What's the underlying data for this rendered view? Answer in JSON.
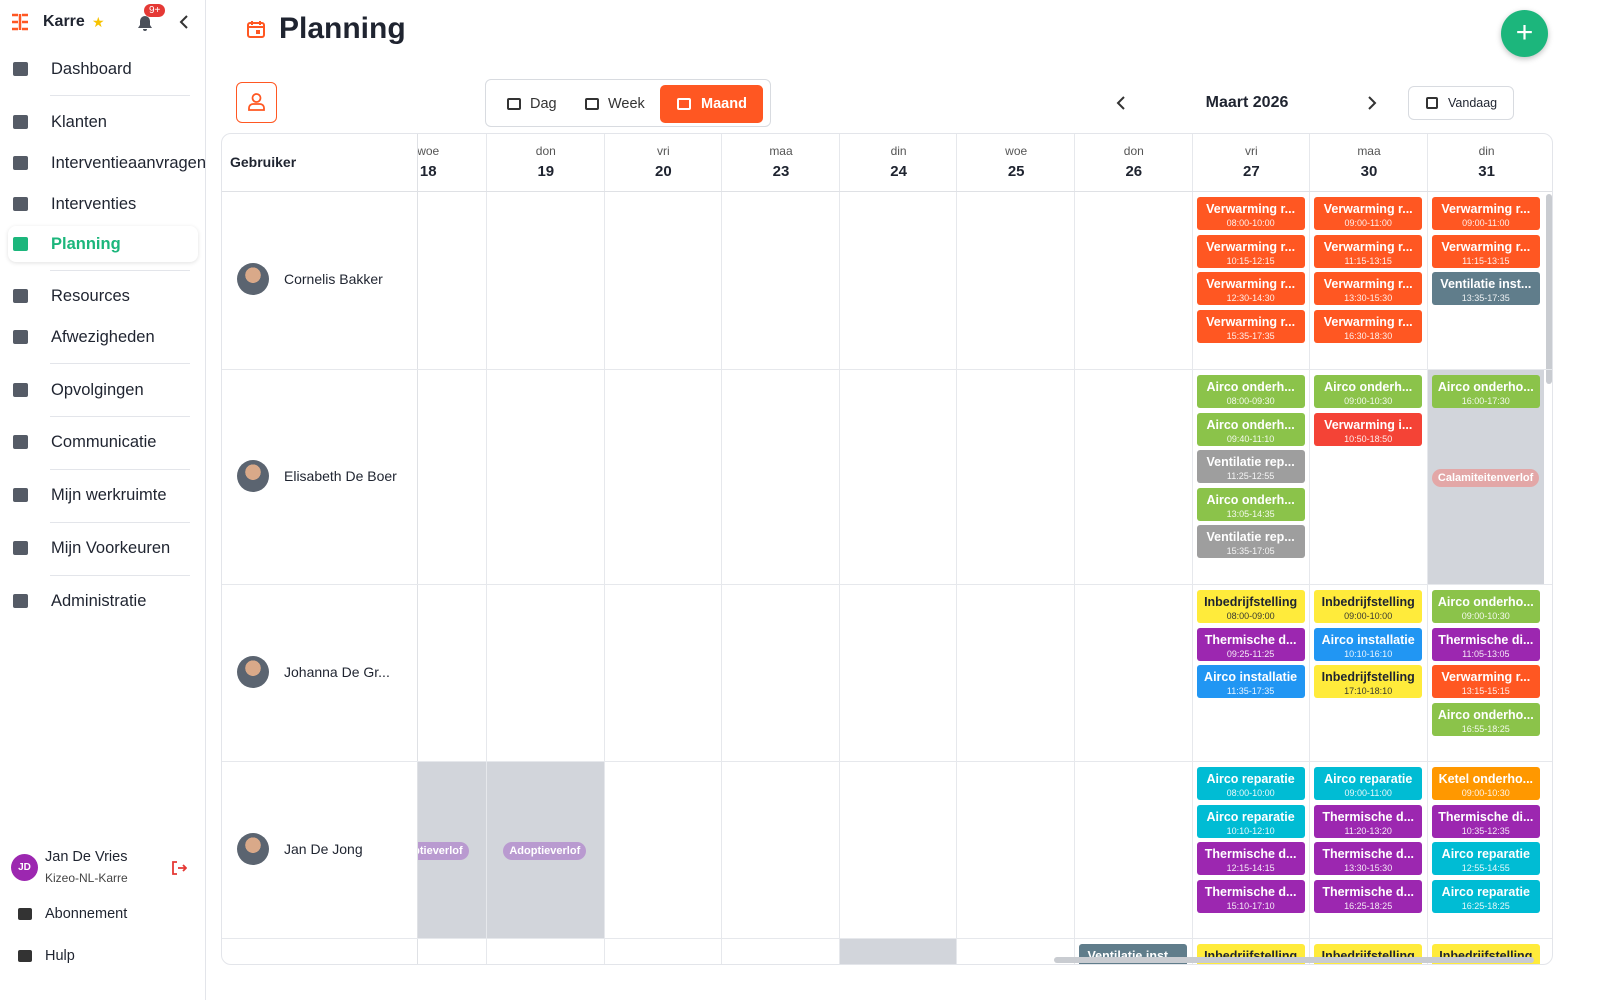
{
  "sidebar": {
    "brand": "Karre",
    "badge": "9+",
    "nav": [
      {
        "label": "Dashboard"
      },
      {
        "label": "Klanten"
      },
      {
        "label": "Interventieaanvragen"
      },
      {
        "label": "Interventies"
      },
      {
        "label": "Planning",
        "active": true
      },
      {
        "label": "Resources"
      },
      {
        "label": "Afwezigheden"
      },
      {
        "label": "Opvolgingen"
      },
      {
        "label": "Communicatie"
      },
      {
        "label": "Mijn werkruimte"
      },
      {
        "label": "Mijn Voorkeuren"
      },
      {
        "label": "Administratie"
      }
    ],
    "user": {
      "initials": "JD",
      "name": "Jan De Vries",
      "org": "Kizeo-NL-Karre"
    },
    "footer": [
      "Abonnement",
      "Hulp"
    ]
  },
  "header": {
    "title": "Planning"
  },
  "toolbar": {
    "views": [
      {
        "label": "Dag"
      },
      {
        "label": "Week"
      },
      {
        "label": "Maand",
        "active": true
      }
    ],
    "period": "Maart 2026",
    "today": "Vandaag"
  },
  "grid": {
    "user_header": "Gebruiker",
    "days": [
      {
        "dow": "woe",
        "num": 18
      },
      {
        "dow": "don",
        "num": 19
      },
      {
        "dow": "vri",
        "num": 20
      },
      {
        "dow": "maa",
        "num": 23
      },
      {
        "dow": "din",
        "num": 24
      },
      {
        "dow": "woe",
        "num": 25
      },
      {
        "dow": "don",
        "num": 26
      },
      {
        "dow": "vri",
        "num": 27
      },
      {
        "dow": "maa",
        "num": 30
      },
      {
        "dow": "din",
        "num": 31
      }
    ],
    "users": [
      {
        "name": "Cornelis Bakker",
        "cells": [
          null,
          null,
          null,
          null,
          null,
          null,
          null,
          {
            "events": [
              {
                "title": "Verwarming r...",
                "time": "08:00-10:00",
                "color": "#ff5722"
              },
              {
                "title": "Verwarming r...",
                "time": "10:15-12:15",
                "color": "#ff5722"
              },
              {
                "title": "Verwarming r...",
                "time": "12:30-14:30",
                "color": "#ff5722"
              },
              {
                "title": "Verwarming r...",
                "time": "15:35-17:35",
                "color": "#ff5722"
              }
            ]
          },
          {
            "events": [
              {
                "title": "Verwarming r...",
                "time": "09:00-11:00",
                "color": "#ff5722"
              },
              {
                "title": "Verwarming r...",
                "time": "11:15-13:15",
                "color": "#ff5722"
              },
              {
                "title": "Verwarming r...",
                "time": "13:30-15:30",
                "color": "#ff5722"
              },
              {
                "title": "Verwarming r...",
                "time": "16:30-18:30",
                "color": "#ff5722"
              }
            ]
          },
          {
            "events": [
              {
                "title": "Verwarming r...",
                "time": "09:00-11:00",
                "color": "#ff5722"
              },
              {
                "title": "Verwarming r...",
                "time": "11:15-13:15",
                "color": "#ff5722"
              },
              {
                "title": "Ventilatie inst...",
                "time": "13:35-17:35",
                "color": "#607d8b"
              }
            ]
          }
        ]
      },
      {
        "name": "Elisabeth De Boer",
        "cells": [
          null,
          null,
          null,
          null,
          null,
          null,
          null,
          {
            "events": [
              {
                "title": "Airco onderh...",
                "time": "08:00-09:30",
                "color": "#8bc34a"
              },
              {
                "title": "Airco onderh...",
                "time": "09:40-11:10",
                "color": "#8bc34a"
              },
              {
                "title": "Ventilatie rep...",
                "time": "11:25-12:55",
                "color": "#9e9e9e"
              },
              {
                "title": "Airco onderh...",
                "time": "13:05-14:35",
                "color": "#8bc34a"
              },
              {
                "title": "Ventilatie rep...",
                "time": "15:35-17:05",
                "color": "#9e9e9e"
              }
            ]
          },
          {
            "events": [
              {
                "title": "Airco onderh...",
                "time": "09:00-10:30",
                "color": "#8bc34a"
              },
              {
                "title": "Verwarming i...",
                "time": "10:50-18:50",
                "color": "#f44336"
              }
            ]
          },
          {
            "off": true,
            "label": "Calamiteitenverlof",
            "events": [
              {
                "title": "Airco onderho...",
                "time": "16:00-17:30",
                "color": "#8bc34a"
              }
            ]
          }
        ]
      },
      {
        "name": "Johanna De Gr...",
        "cells": [
          null,
          null,
          null,
          null,
          null,
          null,
          null,
          {
            "events": [
              {
                "title": "Inbedrijfstelling",
                "time": "08:00-09:00",
                "color": "#ffeb3b"
              },
              {
                "title": "Thermische d...",
                "time": "09:25-11:25",
                "color": "#9c27b0"
              },
              {
                "title": "Airco installatie",
                "time": "11:35-17:35",
                "color": "#2196f3"
              }
            ]
          },
          {
            "events": [
              {
                "title": "Inbedrijfstelling",
                "time": "09:00-10:00",
                "color": "#ffeb3b"
              },
              {
                "title": "Airco installatie",
                "time": "10:10-16:10",
                "color": "#2196f3"
              },
              {
                "title": "Inbedrijfstelling",
                "time": "17:10-18:10",
                "color": "#ffeb3b"
              }
            ]
          },
          {
            "events": [
              {
                "title": "Airco onderho...",
                "time": "09:00-10:30",
                "color": "#8bc34a"
              },
              {
                "title": "Thermische di...",
                "time": "11:05-13:05",
                "color": "#9c27b0"
              },
              {
                "title": "Verwarming r...",
                "time": "13:15-15:15",
                "color": "#ff5722"
              },
              {
                "title": "Airco onderho...",
                "time": "16:55-18:25",
                "color": "#8bc34a"
              }
            ]
          }
        ]
      },
      {
        "name": "Jan De Jong",
        "cells": [
          {
            "off": true,
            "label": "Adoptieverlof"
          },
          {
            "off": true,
            "label": "Adoptieverlof"
          },
          null,
          null,
          null,
          null,
          null,
          {
            "events": [
              {
                "title": "Airco reparatie",
                "time": "08:00-10:00",
                "color": "#00bcd4"
              },
              {
                "title": "Airco reparatie",
                "time": "10:10-12:10",
                "color": "#00bcd4"
              },
              {
                "title": "Thermische d...",
                "time": "12:15-14:15",
                "color": "#9c27b0"
              },
              {
                "title": "Thermische d...",
                "time": "15:10-17:10",
                "color": "#9c27b0"
              }
            ]
          },
          {
            "events": [
              {
                "title": "Airco reparatie",
                "time": "09:00-11:00",
                "color": "#00bcd4"
              },
              {
                "title": "Thermische d...",
                "time": "11:20-13:20",
                "color": "#9c27b0"
              },
              {
                "title": "Thermische d...",
                "time": "13:30-15:30",
                "color": "#9c27b0"
              },
              {
                "title": "Thermische d...",
                "time": "16:25-18:25",
                "color": "#9c27b0"
              }
            ]
          },
          {
            "events": [
              {
                "title": "Ketel onderho...",
                "time": "09:00-10:30",
                "color": "#ff9800"
              },
              {
                "title": "Thermische di...",
                "time": "10:35-12:35",
                "color": "#9c27b0"
              },
              {
                "title": "Airco reparatie",
                "time": "12:55-14:55",
                "color": "#00bcd4"
              },
              {
                "title": "Airco reparatie",
                "time": "16:25-18:25",
                "color": "#00bcd4"
              }
            ]
          }
        ]
      },
      {
        "cells": [
          null,
          null,
          null,
          null,
          {
            "off": true
          },
          null,
          {
            "events": [
              {
                "title": "Ventilatie inst...",
                "color": "#607d8b"
              }
            ]
          },
          {
            "events": [
              {
                "title": "Inbedrijfstelling",
                "color": "#ffeb3b"
              }
            ]
          },
          {
            "events": [
              {
                "title": "Inbedrijfstelling",
                "color": "#ffeb3b"
              }
            ]
          },
          {
            "events": [
              {
                "title": "Inbedrijfstelling",
                "color": "#ffeb3b"
              }
            ]
          }
        ]
      }
    ]
  }
}
